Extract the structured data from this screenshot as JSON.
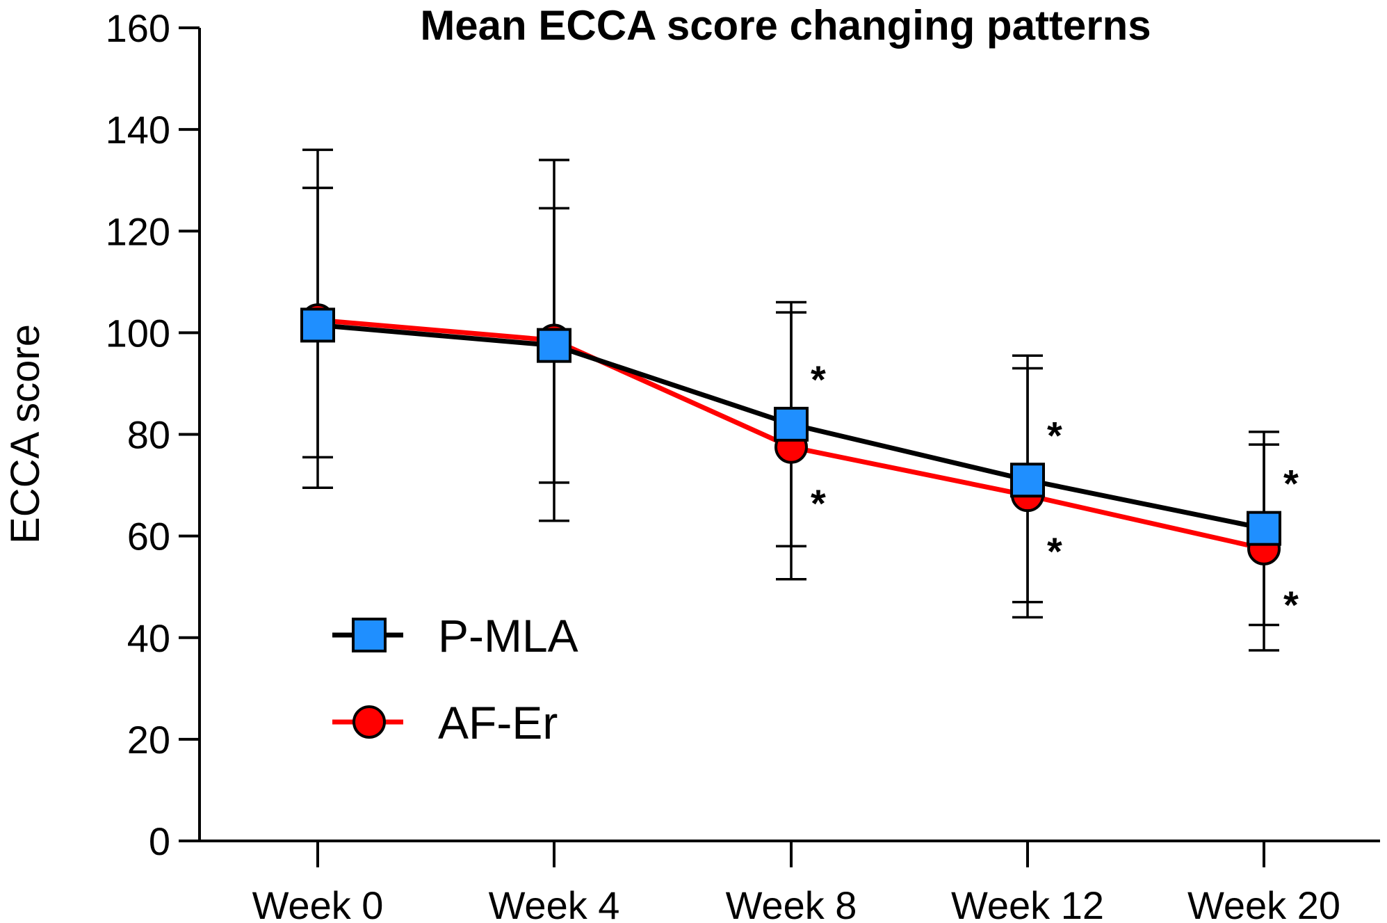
{
  "chart_data": {
    "type": "line",
    "title": "Mean ECCA score changing patterns",
    "xlabel": "",
    "ylabel": "ECCA score",
    "categories": [
      "Week 0",
      "Week 4",
      "Week 8",
      "Week 12",
      "Week 20"
    ],
    "ylim": [
      0,
      160
    ],
    "yticks": [
      0,
      20,
      40,
      60,
      80,
      100,
      120,
      140,
      160
    ],
    "legend_position": "bottom-left",
    "series": [
      {
        "name": "P-MLA",
        "marker": "square",
        "line_color": "#000000",
        "marker_color": "#1f8fff",
        "values": [
          101.5,
          97.5,
          82,
          71,
          61.5
        ],
        "error_upper": [
          136,
          134,
          106,
          95.5,
          80.5
        ],
        "error_lower": [
          75.5,
          70.5,
          58,
          47,
          42.5
        ],
        "significance": [
          "",
          "",
          "*",
          "*",
          "*"
        ]
      },
      {
        "name": "AF-Er",
        "marker": "circle",
        "line_color": "#ff0000",
        "marker_color": "#ff0000",
        "values": [
          102.5,
          98.5,
          77.5,
          68,
          57.5
        ],
        "error_upper": [
          128.5,
          124.5,
          104,
          93,
          78
        ],
        "error_lower": [
          69.5,
          63,
          51.5,
          44,
          37.5
        ],
        "significance": [
          "",
          "",
          "*",
          "*",
          "*"
        ]
      }
    ]
  }
}
